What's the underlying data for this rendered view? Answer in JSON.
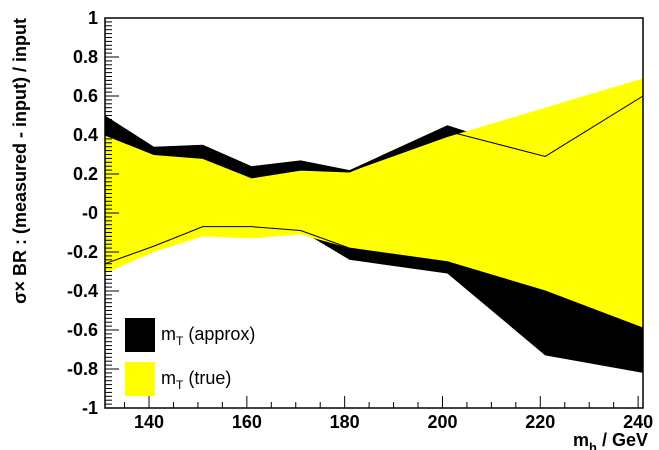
{
  "chart_data": {
    "type": "area",
    "xlabel": "m_h / GeV",
    "xlabel_main": "m",
    "xlabel_sub": "h",
    "xlabel_rest": " / GeV",
    "ylabel": "σ× BR : (measured - input) / input",
    "xlim": [
      131,
      241
    ],
    "ylim": [
      -1,
      1
    ],
    "x_ticks": [
      {
        "value": 140,
        "label": "140"
      },
      {
        "value": 160,
        "label": "160"
      },
      {
        "value": 180,
        "label": "180"
      },
      {
        "value": 200,
        "label": "200"
      },
      {
        "value": 220,
        "label": "220"
      },
      {
        "value": 240,
        "label": "240"
      }
    ],
    "y_ticks": [
      {
        "value": 1,
        "label": "1"
      },
      {
        "value": 0.8,
        "label": "0.8"
      },
      {
        "value": 0.6,
        "label": "0.6"
      },
      {
        "value": 0.4,
        "label": "0.4"
      },
      {
        "value": 0.2,
        "label": "0.2"
      },
      {
        "value": 0,
        "label": "-0"
      },
      {
        "value": -0.2,
        "label": "-0.2"
      },
      {
        "value": -0.4,
        "label": "-0.4"
      },
      {
        "value": -0.6,
        "label": "-0.6"
      },
      {
        "value": -0.8,
        "label": "-0.8"
      },
      {
        "value": -1,
        "label": "-1"
      }
    ],
    "series": [
      {
        "name": "m_T (approx)",
        "label_main": "m",
        "label_sub": "T",
        "label_rest": " (approx)",
        "color": "#000000",
        "x": [
          131,
          141,
          151,
          161,
          171,
          181,
          201,
          221,
          241
        ],
        "upper": [
          0.5,
          0.34,
          0.35,
          0.24,
          0.27,
          0.22,
          0.45,
          0.29,
          0.6
        ],
        "lower": [
          -0.26,
          -0.17,
          -0.07,
          -0.07,
          -0.09,
          -0.24,
          -0.31,
          -0.73,
          -0.82
        ]
      },
      {
        "name": "m_T (true)",
        "label_main": "m",
        "label_sub": "T",
        "label_rest": " (true)",
        "color": "#ffff00",
        "x": [
          131,
          141,
          151,
          161,
          171,
          181,
          201,
          221,
          241
        ],
        "upper": [
          0.4,
          0.3,
          0.28,
          0.18,
          0.22,
          0.21,
          0.39,
          0.54,
          0.69
        ],
        "lower": [
          -0.31,
          -0.2,
          -0.12,
          -0.13,
          -0.11,
          -0.18,
          -0.25,
          -0.4,
          -0.59
        ]
      }
    ],
    "outline": {
      "x": [
        131,
        141,
        151,
        161,
        171,
        181,
        201,
        221,
        241
      ],
      "upper": [
        0.4,
        0.3,
        0.28,
        0.18,
        0.22,
        0.21,
        0.42,
        0.29,
        0.6
      ],
      "lower": [
        -0.26,
        -0.17,
        -0.07,
        -0.07,
        -0.09,
        -0.18,
        -0.25,
        -0.4,
        -0.59
      ]
    },
    "legend_position": "bottom-left",
    "grid": false
  }
}
